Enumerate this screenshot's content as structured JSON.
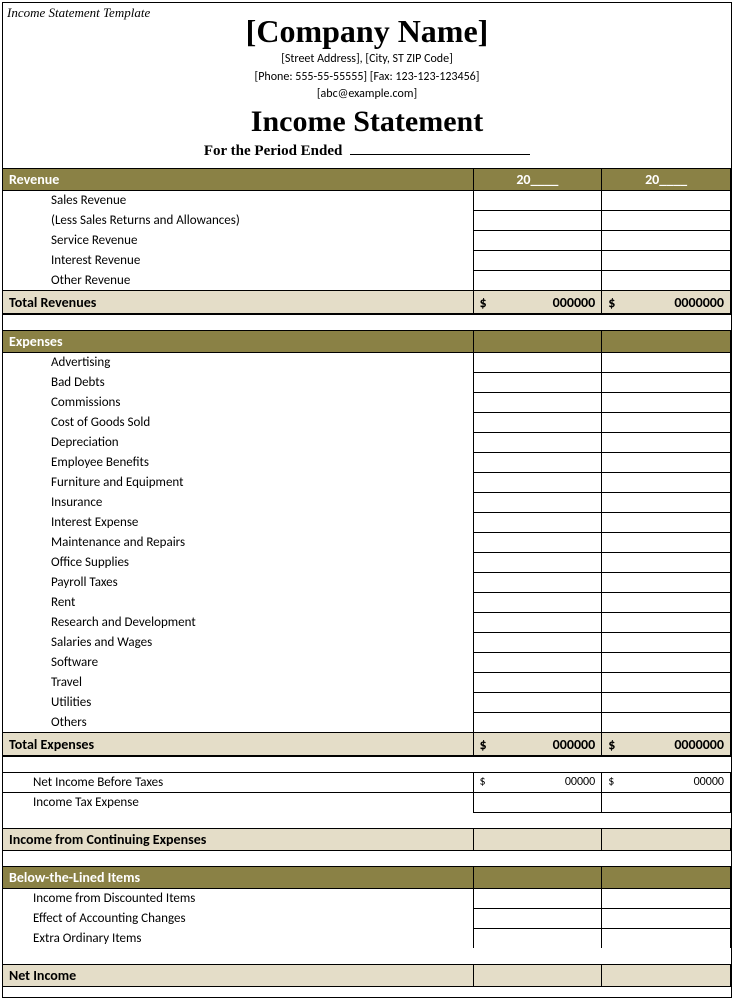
{
  "colors": {
    "olive": "#8a8145",
    "beige": "#e4ddc8",
    "white": "#ffffff",
    "black": "#000000"
  },
  "top_label": "Income Statement Template",
  "header": {
    "company": "[Company Name]",
    "contact1": "[Street Address], [City, ST ZIP Code]",
    "contact2": "[Phone: 555-55-55555] [Fax: 123-123-123456]",
    "contact3": "[abc@example.com]",
    "title": "Income Statement",
    "period": "For the Period Ended"
  },
  "year_label": "20____",
  "revenue": {
    "heading": "Revenue",
    "items": [
      "Sales Revenue",
      "(Less Sales Returns and Allowances)",
      "Service Revenue",
      "Interest Revenue",
      "Other Revenue"
    ],
    "total_label": "Total Revenues",
    "total_y1_sym": "$",
    "total_y1_val": "000000",
    "total_y2_sym": "$",
    "total_y2_val": "0000000"
  },
  "expenses": {
    "heading": "Expenses",
    "items": [
      "Advertising",
      "Bad Debts",
      "Commissions",
      "Cost of Goods Sold",
      "Depreciation",
      "Employee Benefits",
      "Furniture and Equipment",
      "Insurance",
      "Interest Expense",
      "Maintenance and Repairs",
      "Office Supplies",
      "Payroll Taxes",
      "Rent",
      "Research and Development",
      "Salaries and Wages",
      "Software",
      "Travel",
      "Utilities",
      "Others"
    ],
    "total_label": "Total Expenses",
    "total_y1_sym": "$",
    "total_y1_val": "000000",
    "total_y2_sym": "$",
    "total_y2_val": "0000000"
  },
  "net_before": {
    "label": "Net Income Before Taxes",
    "y1_sym": "$",
    "y1_val": "00000",
    "y2_sym": "$",
    "y2_val": "00000"
  },
  "tax_expense": "Income Tax Expense",
  "continuing": "Income from Continuing  Expenses",
  "below": {
    "heading": "Below-the-Lined Items",
    "items": [
      "Income from Discounted Items",
      "Effect of Accounting Changes",
      "Extra Ordinary Items"
    ]
  },
  "net_income": "Net Income"
}
